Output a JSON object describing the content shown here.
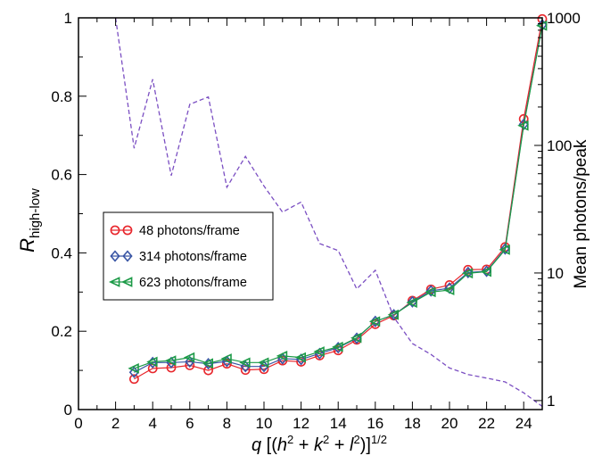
{
  "chart_data": {
    "type": "line",
    "xlabel_parts": [
      "q",
      " [(",
      "h",
      "2",
      " + ",
      "k",
      "2",
      " + ",
      "l",
      "2",
      ")]",
      "1/2"
    ],
    "ylabel_left_main": "R",
    "ylabel_left_sub": "high-low",
    "ylabel_right": "Mean photons/peak",
    "xlim": [
      0,
      25
    ],
    "ylim_left": [
      0,
      1
    ],
    "ylim_right": [
      0.85,
      1000
    ],
    "yscale_right": "log",
    "grid": false,
    "x_ticks": [
      "0",
      "2",
      "4",
      "6",
      "8",
      "10",
      "12",
      "14",
      "16",
      "18",
      "20",
      "22",
      "24"
    ],
    "y_ticks_left": [
      "0",
      "0.2",
      "0.4",
      "0.6",
      "0.8",
      "1"
    ],
    "y_ticks_right": [
      "1",
      "10",
      "100",
      "1000"
    ],
    "legend_position": "center-left",
    "x": [
      3,
      4,
      5,
      6,
      7,
      8,
      9,
      10,
      11,
      12,
      13,
      14,
      15,
      16,
      17,
      18,
      19,
      20,
      21,
      22,
      23,
      24,
      25
    ],
    "series": [
      {
        "name": "48 photons/frame",
        "axis": "left",
        "color": "#e8262c",
        "marker": "circle",
        "values": [
          0.078,
          0.105,
          0.107,
          0.113,
          0.1,
          0.117,
          0.101,
          0.103,
          0.125,
          0.122,
          0.138,
          0.151,
          0.178,
          0.218,
          0.24,
          0.278,
          0.307,
          0.318,
          0.357,
          0.358,
          0.415,
          0.742,
          0.997
        ]
      },
      {
        "name": "314 photons/frame",
        "axis": "left",
        "color": "#3a56a5",
        "marker": "diamond",
        "values": [
          0.095,
          0.12,
          0.12,
          0.122,
          0.117,
          0.123,
          0.11,
          0.11,
          0.13,
          0.128,
          0.143,
          0.158,
          0.182,
          0.225,
          0.242,
          0.275,
          0.303,
          0.31,
          0.35,
          0.353,
          0.41,
          0.728,
          0.982
        ]
      },
      {
        "name": "623 photons/frame",
        "axis": "left",
        "color": "#1c9a47",
        "marker": "triangle-left",
        "values": [
          0.105,
          0.122,
          0.125,
          0.133,
          0.118,
          0.13,
          0.12,
          0.12,
          0.137,
          0.133,
          0.148,
          0.16,
          0.183,
          0.225,
          0.242,
          0.273,
          0.3,
          0.305,
          0.348,
          0.352,
          0.408,
          0.725,
          0.98
        ]
      },
      {
        "name": "",
        "axis": "right",
        "color": "#7b4fc2",
        "style": "dashed",
        "x": [
          2,
          3,
          4,
          5,
          6,
          7,
          8,
          9,
          10,
          11,
          12,
          13,
          14,
          15,
          16,
          17,
          18,
          19,
          20,
          21,
          22,
          23,
          24,
          25
        ],
        "values": [
          1000,
          95,
          330,
          58,
          210,
          240,
          47,
          82,
          48,
          30,
          36,
          17,
          15,
          7.5,
          10.5,
          4.5,
          2.8,
          2.3,
          1.8,
          1.6,
          1.5,
          1.4,
          1.15,
          0.9
        ]
      }
    ]
  }
}
